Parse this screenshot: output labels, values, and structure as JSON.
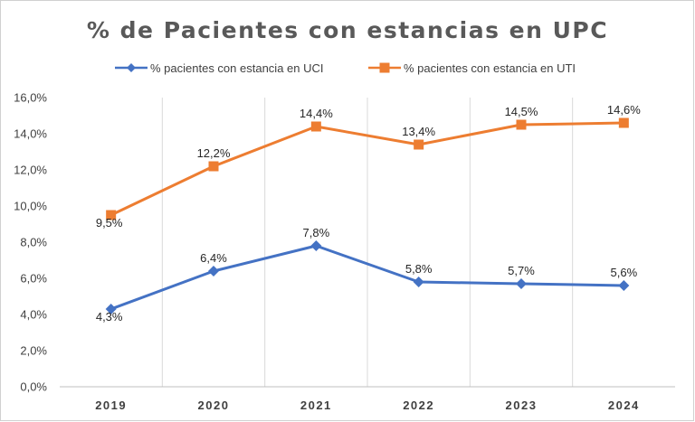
{
  "chart_data": {
    "type": "line",
    "title": "% de Pacientes con estancias en UPC",
    "categories": [
      "2019",
      "2020",
      "2021",
      "2022",
      "2023",
      "2024"
    ],
    "ylim": [
      0,
      16
    ],
    "yticks": [
      "0,0%",
      "2,0%",
      "4,0%",
      "6,0%",
      "8,0%",
      "10,0%",
      "12,0%",
      "14,0%",
      "16,0%"
    ],
    "legend_position": "top",
    "grid": "vertical",
    "series": [
      {
        "name": "% pacientes con estancia en UCI",
        "values": [
          4.3,
          6.4,
          7.8,
          5.8,
          5.7,
          5.6
        ],
        "labels": [
          "4,3%",
          "6,4%",
          "7,8%",
          "5,8%",
          "5,7%",
          "5,6%"
        ],
        "color": "#4472c4",
        "marker": "diamond"
      },
      {
        "name": "% pacientes con estancia en UTI",
        "values": [
          9.5,
          12.2,
          14.4,
          13.4,
          14.5,
          14.6
        ],
        "labels": [
          "9,5%",
          "12,2%",
          "14,4%",
          "13,4%",
          "14,5%",
          "14,6%"
        ],
        "color": "#ed7d31",
        "marker": "square"
      }
    ]
  }
}
